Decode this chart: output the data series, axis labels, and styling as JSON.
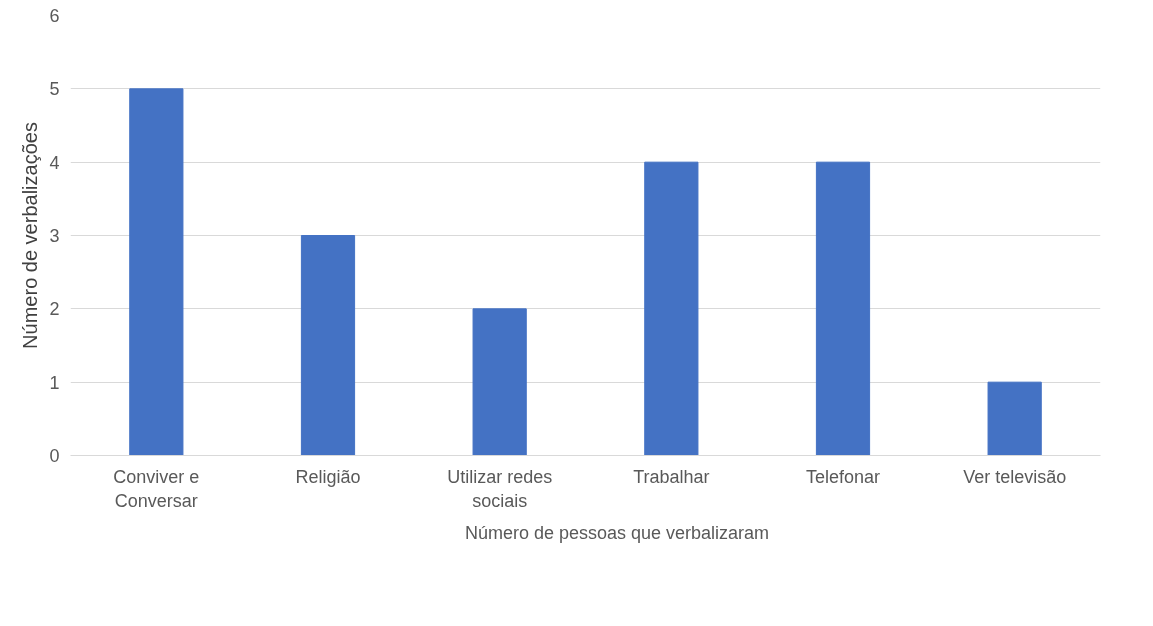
{
  "chart_data": {
    "type": "bar",
    "ylabel": "Número de verbalizações",
    "categories": [
      "Conviver e Conversar",
      "Religião",
      "Utilizar redes sociais",
      "Trabalhar",
      "Telefonar",
      "Ver televisão"
    ],
    "series": [
      {
        "name": "Número de pessoas que verbalizaram",
        "color": "#4472c4",
        "values": [
          5,
          3,
          2,
          4,
          4,
          1
        ]
      }
    ],
    "ylim": [
      0,
      6
    ],
    "yticks": [
      0,
      1,
      2,
      3,
      4,
      5,
      6
    ],
    "grid": "y",
    "legend": "bottom"
  }
}
